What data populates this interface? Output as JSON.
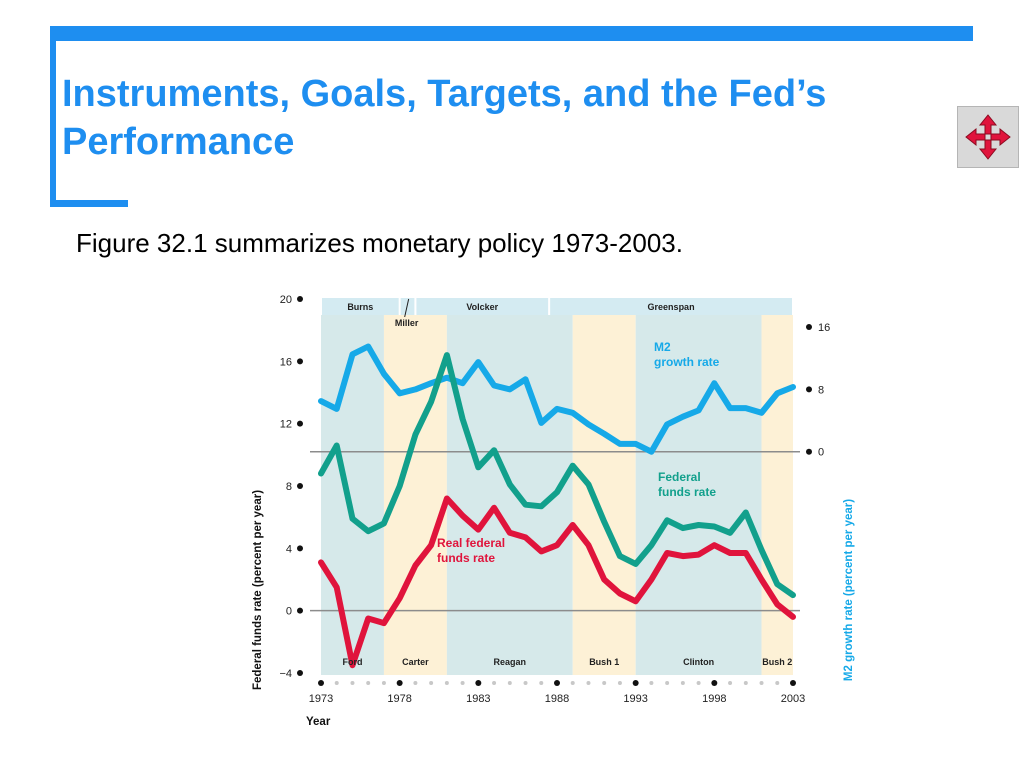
{
  "slide": {
    "title": "Instruments, Goals, Targets, and the Fed’s Performance",
    "subtitle": "Figure 32.1 summarizes monetary policy 1973-2003."
  },
  "nav_icon": "move-arrows-icon",
  "colors": {
    "accent": "#1e8ef0",
    "m2": "#16a9e8",
    "federal": "#12a08c",
    "real": "#e0143c",
    "shade_blue": "#d6e9ea",
    "shade_yellow": "#fdf1d6",
    "chair_band": "#d4ebf2"
  },
  "chart_data": {
    "type": "line",
    "xlabel": "Year",
    "ylabel_left": "Federal funds rate (percent per year)",
    "ylabel_right": "M2 growth rate (percent per year)",
    "x_ticks": [
      1973,
      1978,
      1983,
      1988,
      1993,
      1998,
      2003
    ],
    "xlim": [
      1973,
      2003
    ],
    "y_left_ticks": [
      20,
      16,
      12,
      8,
      4,
      0,
      -4
    ],
    "ylim_left": [
      -4,
      20
    ],
    "y_right_ticks": [
      16,
      8,
      0
    ],
    "right_axis_map": {
      "right_value_zero_at_left": 10.2,
      "left_units_per_right_unit": 0.5
    },
    "chairs": [
      {
        "name": "Burns",
        "start": 1973,
        "end": 1978
      },
      {
        "name": "Miller",
        "start": 1978,
        "end": 1979
      },
      {
        "name": "Volcker",
        "start": 1979,
        "end": 1987.5
      },
      {
        "name": "Greenspan",
        "start": 1987.5,
        "end": 2003
      }
    ],
    "presidents": [
      {
        "name": "Ford",
        "start": 1973,
        "end": 1977,
        "shade": "blue"
      },
      {
        "name": "Carter",
        "start": 1977,
        "end": 1981,
        "shade": "yellow"
      },
      {
        "name": "Reagan",
        "start": 1981,
        "end": 1989,
        "shade": "blue"
      },
      {
        "name": "Bush 1",
        "start": 1989,
        "end": 1993,
        "shade": "yellow"
      },
      {
        "name": "Clinton",
        "start": 1993,
        "end": 2001,
        "shade": "blue"
      },
      {
        "name": "Bush 2",
        "start": 2001,
        "end": 2003,
        "shade": "yellow"
      }
    ],
    "series": [
      {
        "name": "M2 growth rate",
        "label_lines": [
          "M2",
          "growth rate"
        ],
        "axis": "right",
        "x": [
          1973,
          1974,
          1975,
          1976,
          1977,
          1978,
          1979,
          1980,
          1981,
          1982,
          1983,
          1984,
          1985,
          1986,
          1987,
          1988,
          1989,
          1990,
          1991,
          1992,
          1993,
          1994,
          1995,
          1996,
          1997,
          1998,
          1999,
          2000,
          2001,
          2002,
          2003
        ],
        "values": [
          6.5,
          5.5,
          12.5,
          13.5,
          10,
          7.5,
          8,
          8.8,
          9.5,
          8.8,
          11.5,
          8.5,
          8,
          9.3,
          3.7,
          5.5,
          5,
          3.5,
          2.3,
          1,
          1,
          0,
          3.5,
          4.5,
          5.3,
          8.8,
          5.6,
          5.6,
          5,
          7.5,
          8.3
        ]
      },
      {
        "name": "Federal funds rate",
        "label_lines": [
          "Federal",
          "funds rate"
        ],
        "axis": "left",
        "x": [
          1973,
          1974,
          1975,
          1976,
          1977,
          1978,
          1979,
          1980,
          1981,
          1982,
          1983,
          1984,
          1985,
          1986,
          1987,
          1988,
          1989,
          1990,
          1991,
          1992,
          1993,
          1994,
          1995,
          1996,
          1997,
          1998,
          1999,
          2000,
          2001,
          2002,
          2003
        ],
        "values": [
          8.8,
          10.6,
          5.9,
          5.1,
          5.6,
          8,
          11.3,
          13.4,
          16.4,
          12.3,
          9.2,
          10.3,
          8.1,
          6.8,
          6.7,
          7.6,
          9.3,
          8.1,
          5.7,
          3.5,
          3,
          4.2,
          5.8,
          5.3,
          5.5,
          5.4,
          5,
          6.3,
          3.9,
          1.7,
          1
        ]
      },
      {
        "name": "Real federal funds rate",
        "label_lines": [
          "Real federal",
          "funds rate"
        ],
        "axis": "left",
        "x": [
          1973,
          1974,
          1975,
          1976,
          1977,
          1978,
          1979,
          1980,
          1981,
          1982,
          1983,
          1984,
          1985,
          1986,
          1987,
          1988,
          1989,
          1990,
          1991,
          1992,
          1993,
          1994,
          1995,
          1996,
          1997,
          1998,
          1999,
          2000,
          2001,
          2002,
          2003
        ],
        "values": [
          3.1,
          1.5,
          -3.5,
          -0.5,
          -0.8,
          0.8,
          2.9,
          4.2,
          7.2,
          6.1,
          5.2,
          6.6,
          5,
          4.7,
          3.8,
          4.2,
          5.5,
          4.2,
          2,
          1.1,
          0.6,
          2,
          3.7,
          3.5,
          3.6,
          4.2,
          3.7,
          3.7,
          2,
          0.4,
          -0.4
        ]
      }
    ]
  }
}
